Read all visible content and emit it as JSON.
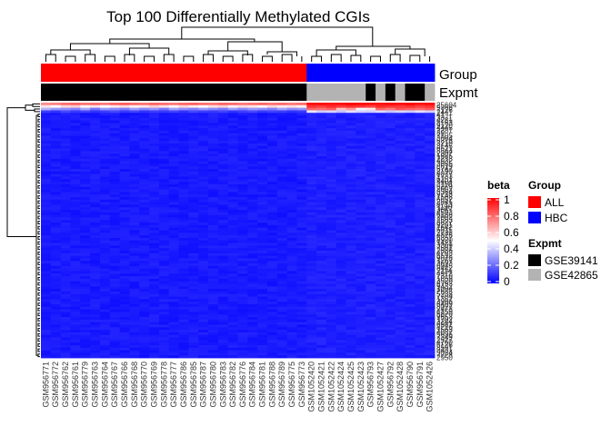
{
  "chart_data": {
    "type": "heatmap",
    "title": "Top 100 Differentially Methylated CGIs",
    "columns": [
      "GSM956771",
      "GSM956772",
      "GSM956762",
      "GSM956761",
      "GSM956779",
      "GSM956763",
      "GSM956764",
      "GSM956767",
      "GSM956766",
      "GSM956768",
      "GSM956770",
      "GSM956769",
      "GSM956778",
      "GSM956777",
      "GSM956786",
      "GSM956785",
      "GSM956787",
      "GSM956780",
      "GSM956783",
      "GSM956782",
      "GSM956776",
      "GSM956784",
      "GSM956781",
      "GSM956788",
      "GSM956789",
      "GSM956775",
      "GSM956773",
      "GSM1052420",
      "GSM1052421",
      "GSM1052422",
      "GSM1052424",
      "GSM1052425",
      "GSM1052423",
      "GSM956793",
      "GSM1052427",
      "GSM956792",
      "GSM1052428",
      "GSM956790",
      "GSM956791",
      "GSM1052426"
    ],
    "group_annotation": {
      "label": "Group",
      "values": [
        "ALL",
        "ALL",
        "ALL",
        "ALL",
        "ALL",
        "ALL",
        "ALL",
        "ALL",
        "ALL",
        "ALL",
        "ALL",
        "ALL",
        "ALL",
        "ALL",
        "ALL",
        "ALL",
        "ALL",
        "ALL",
        "ALL",
        "ALL",
        "ALL",
        "ALL",
        "ALL",
        "ALL",
        "ALL",
        "ALL",
        "ALL",
        "HBC",
        "HBC",
        "HBC",
        "HBC",
        "HBC",
        "HBC",
        "HBC",
        "HBC",
        "HBC",
        "HBC",
        "HBC",
        "HBC",
        "HBC"
      ],
      "colors": {
        "ALL": "#ff0000",
        "HBC": "#0000ff"
      }
    },
    "expmt_annotation": {
      "label": "Expmt",
      "values": [
        "GSE39141",
        "GSE39141",
        "GSE39141",
        "GSE39141",
        "GSE39141",
        "GSE39141",
        "GSE39141",
        "GSE39141",
        "GSE39141",
        "GSE39141",
        "GSE39141",
        "GSE39141",
        "GSE39141",
        "GSE39141",
        "GSE39141",
        "GSE39141",
        "GSE39141",
        "GSE39141",
        "GSE39141",
        "GSE39141",
        "GSE39141",
        "GSE39141",
        "GSE39141",
        "GSE39141",
        "GSE39141",
        "GSE39141",
        "GSE39141",
        "GSE42865",
        "GSE42865",
        "GSE42865",
        "GSE42865",
        "GSE42865",
        "GSE42865",
        "GSE39141",
        "GSE42865",
        "GSE39141",
        "GSE42865",
        "GSE39141",
        "GSE39141",
        "GSE42865"
      ],
      "colors": {
        "GSE39141": "#000000",
        "GSE42865": "#b3b3b3"
      }
    },
    "row_labels": [
      "25604",
      "9366",
      "7126",
      "2441",
      "41",
      "3371",
      "4281",
      "8163",
      "9120",
      "4445",
      "2281",
      "39",
      "7105",
      "3004",
      "5316",
      "3210",
      "3145",
      "6521",
      "8844",
      "2307",
      "1985",
      "2218",
      "4932",
      "3055",
      "8619",
      "5747",
      "2190",
      "8077",
      "1733",
      "6251",
      "4404",
      "3118",
      "5279",
      "2002",
      "3364",
      "9718",
      "1508",
      "6652",
      "2841",
      "8713",
      "1190",
      "3047",
      "4593",
      "6188",
      "7002",
      "2563",
      "3877",
      "9201",
      "1642",
      "5011",
      "2732",
      "4818",
      "6357",
      "8920",
      "1421",
      "3309",
      "7561",
      "2086",
      "4703",
      "5512",
      "9078",
      "1267",
      "3693",
      "6045",
      "8442",
      "2114",
      "4972",
      "7310",
      "1859",
      "3520",
      "6793",
      "9432",
      "1094",
      "2685",
      "5238",
      "7784",
      "1357",
      "3966",
      "6409",
      "8027",
      "2478",
      "4159",
      "5870",
      "9653",
      "1702",
      "3244",
      "6981",
      "8216",
      "1563",
      "4087",
      "5636",
      "7349",
      "2927",
      "4760",
      "6126",
      "8591",
      "3431",
      "5024",
      "7728",
      "2950"
    ],
    "bright_rows": {
      "0": [
        0.72,
        0.74,
        0.78,
        0.8,
        0.77,
        0.79,
        0.76,
        0.8,
        0.82,
        0.79,
        0.77,
        0.8,
        0.78,
        0.76,
        0.79,
        0.81,
        0.78,
        0.77,
        0.8,
        0.79,
        0.76,
        0.78,
        0.8,
        0.77,
        0.79,
        0.76,
        0.78,
        0.97,
        0.98,
        0.96,
        0.97,
        0.99,
        0.98,
        0.97,
        0.96,
        0.98,
        0.97,
        0.99,
        0.96,
        0.98
      ],
      "1": [
        0.55,
        0.5,
        0.58,
        0.6,
        0.52,
        0.56,
        0.5,
        0.54,
        0.57,
        0.53,
        0.55,
        0.6,
        0.56,
        0.52,
        0.58,
        0.54,
        0.51,
        0.56,
        0.59,
        0.53,
        0.57,
        0.55,
        0.52,
        0.58,
        0.54,
        0.56,
        0.53,
        0.9,
        0.88,
        0.92,
        0.89,
        0.91,
        0.9,
        0.87,
        0.92,
        0.9,
        0.89,
        0.91,
        0.88,
        0.9
      ],
      "2": [
        0.35,
        0.3,
        0.28,
        0.25,
        0.33,
        0.22,
        0.3,
        0.27,
        0.24,
        0.31,
        0.26,
        0.29,
        0.23,
        0.32,
        0.28,
        0.25,
        0.3,
        0.27,
        0.24,
        0.31,
        0.26,
        0.3,
        0.28,
        0.25,
        0.32,
        0.27,
        0.29,
        0.8,
        0.78,
        0.82,
        0.62,
        0.7,
        0.48,
        0.55,
        0.8,
        0.76,
        0.84,
        0.81,
        0.79,
        0.83
      ],
      "3": [
        0.12,
        0.1,
        0.14,
        0.11,
        0.13,
        0.1,
        0.12,
        0.14,
        0.11,
        0.13,
        0.1,
        0.12,
        0.11,
        0.13,
        0.1,
        0.14,
        0.12,
        0.11,
        0.13,
        0.1,
        0.12,
        0.14,
        0.11,
        0.13,
        0.12,
        0.1,
        0.11,
        0.45,
        0.4,
        0.42,
        0.38,
        0.44,
        0.41,
        0.4,
        0.43,
        0.39,
        0.42,
        0.4,
        0.44,
        0.41
      ]
    },
    "base_value": 0.05,
    "colorbar": {
      "title": "beta",
      "ticks": [
        0,
        0.2,
        0.4,
        0.6,
        0.8,
        1
      ],
      "tick_labels": [
        "0",
        "0.2",
        "0.4",
        "0.6",
        "0.8",
        "1"
      ],
      "low": "#0000ff",
      "mid": "#ffffff",
      "high": "#ff0000"
    },
    "legend": {
      "group_title": "Group",
      "group_items": [
        {
          "label": "ALL",
          "color": "#ff0000"
        },
        {
          "label": "HBC",
          "color": "#0000ff"
        }
      ],
      "expmt_title": "Expmt",
      "expmt_items": [
        {
          "label": "GSE39141",
          "color": "#000000"
        },
        {
          "label": "GSE42865",
          "color": "#b3b3b3"
        }
      ]
    }
  }
}
